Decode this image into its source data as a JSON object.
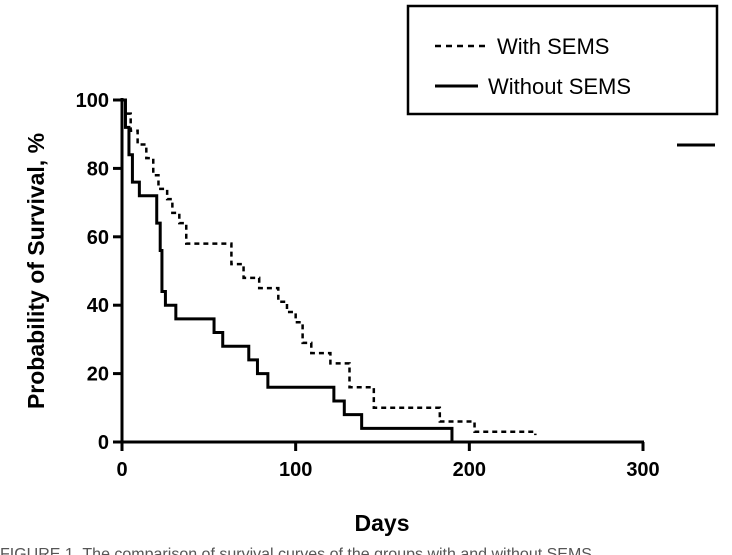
{
  "chart_data": {
    "type": "line",
    "subtype": "kaplan-meier step curves",
    "xlabel": "Days",
    "ylabel": "Probability of Survival, %",
    "xlim": [
      0,
      300
    ],
    "ylim": [
      0,
      100
    ],
    "xticks": [
      0,
      100,
      200,
      300
    ],
    "yticks": [
      0,
      20,
      40,
      60,
      80,
      100
    ],
    "grid": false,
    "legend_position": "top-right",
    "series": [
      {
        "name": "With SEMS",
        "line_style": "dashed",
        "color": "#000000",
        "points": [
          [
            0,
            100
          ],
          [
            2,
            96
          ],
          [
            5,
            91
          ],
          [
            9,
            87
          ],
          [
            14,
            83
          ],
          [
            18,
            78
          ],
          [
            21,
            74
          ],
          [
            26,
            71
          ],
          [
            29,
            67
          ],
          [
            33,
            64
          ],
          [
            37,
            58
          ],
          [
            63,
            52
          ],
          [
            70,
            48
          ],
          [
            79,
            45
          ],
          [
            90,
            41
          ],
          [
            95,
            38
          ],
          [
            100,
            35
          ],
          [
            104,
            29
          ],
          [
            109,
            26
          ],
          [
            120,
            23
          ],
          [
            131,
            16
          ],
          [
            145,
            10
          ],
          [
            183,
            6
          ],
          [
            203,
            3
          ],
          [
            238,
            2
          ]
        ]
      },
      {
        "name": "Without SEMS",
        "line_style": "solid",
        "color": "#000000",
        "points": [
          [
            0,
            100
          ],
          [
            2,
            92
          ],
          [
            4,
            84
          ],
          [
            6,
            76
          ],
          [
            10,
            72
          ],
          [
            20,
            64
          ],
          [
            22,
            56
          ],
          [
            23,
            44
          ],
          [
            25,
            40
          ],
          [
            31,
            36
          ],
          [
            53,
            32
          ],
          [
            58,
            28
          ],
          [
            73,
            24
          ],
          [
            78,
            20
          ],
          [
            84,
            16
          ],
          [
            122,
            12
          ],
          [
            128,
            8
          ],
          [
            138,
            4
          ],
          [
            190,
            0
          ]
        ]
      }
    ]
  },
  "caption": "FIGURE 1.    The comparison of survival curves of the groups with and without SEMS."
}
